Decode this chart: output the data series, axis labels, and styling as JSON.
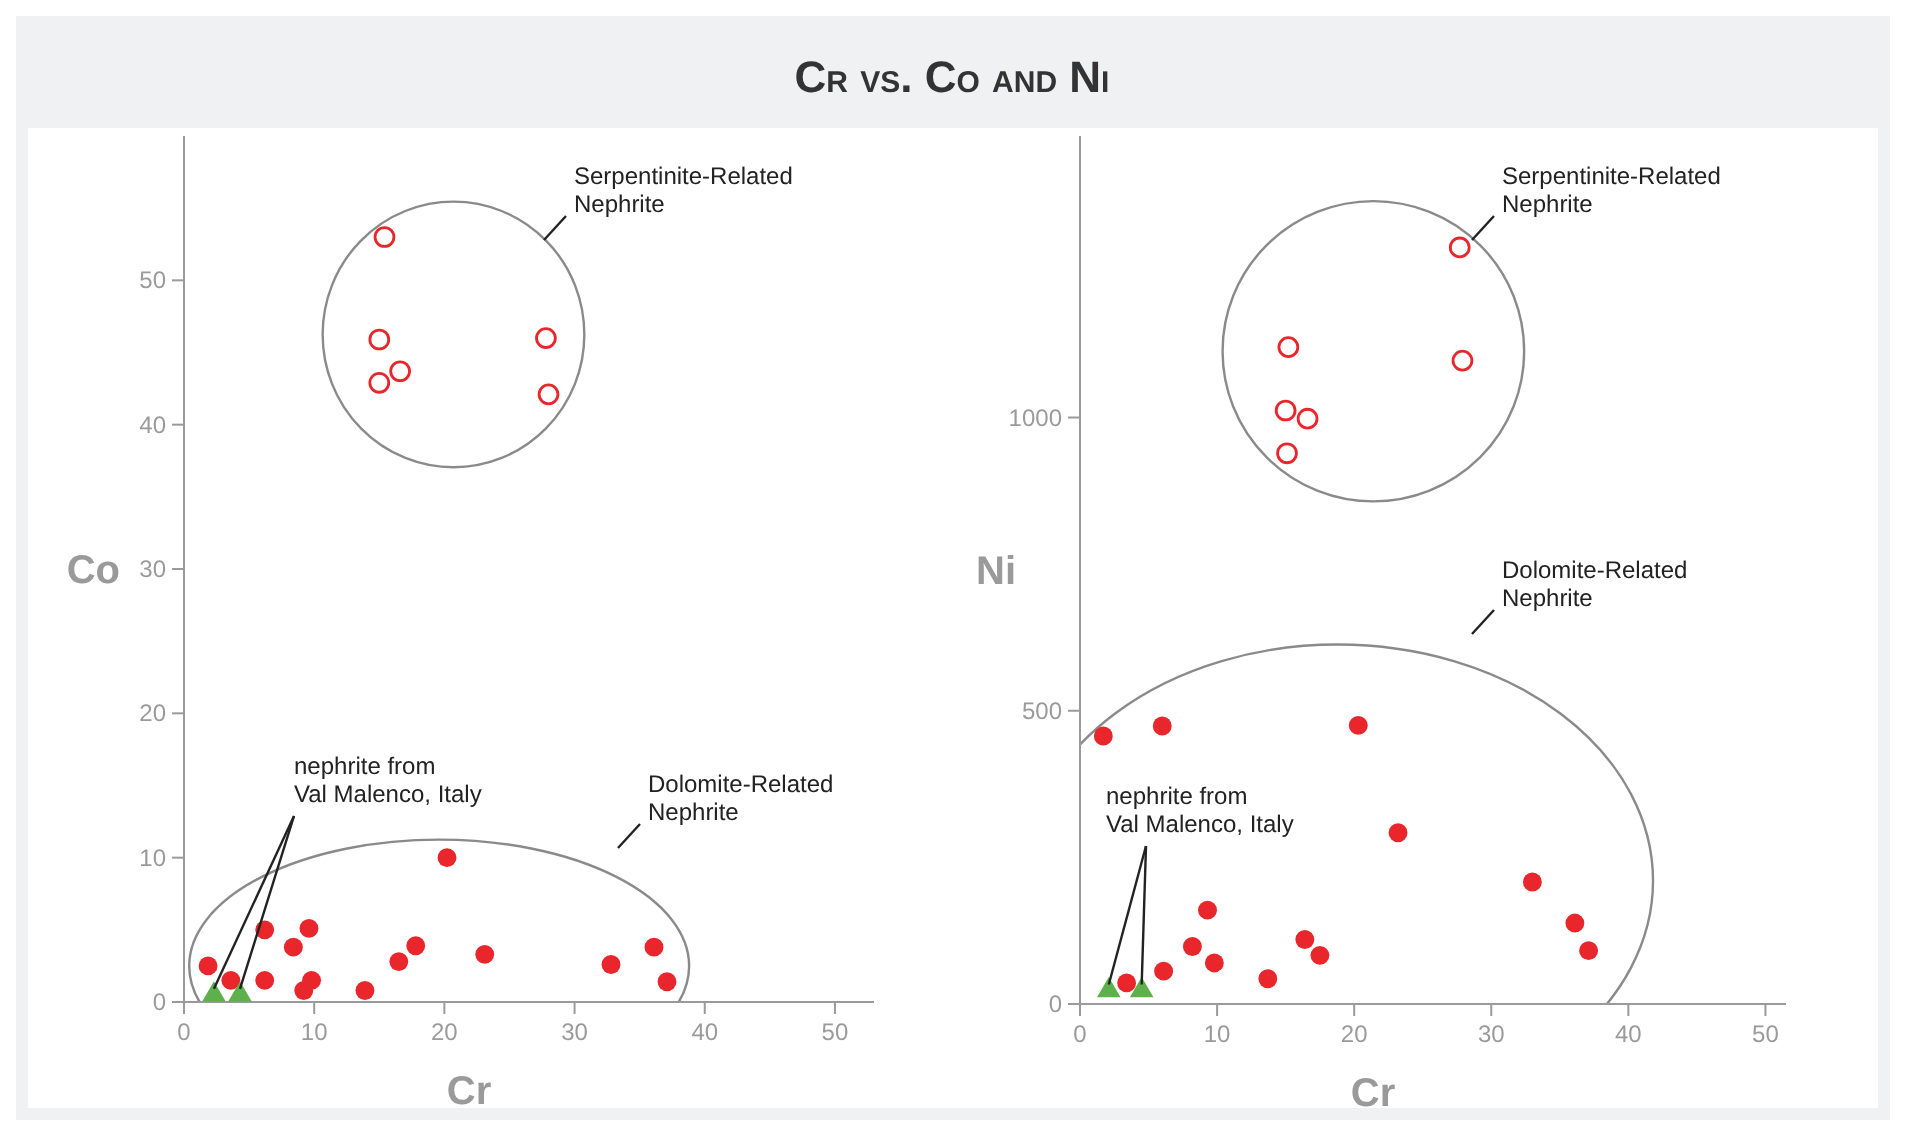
{
  "chart_data": [
    {
      "type": "scatter",
      "title": "Cr vs. Co and Ni",
      "xlabel": "Cr",
      "ylabel": "Co",
      "xlim": [
        0,
        53
      ],
      "ylim": [
        0,
        60
      ],
      "xticks": [
        0,
        10,
        20,
        30,
        40,
        50
      ],
      "yticks": [
        0,
        10,
        20,
        30,
        40,
        50
      ],
      "grid": false,
      "marker": "circle",
      "annotations": [
        "Serpentinite-Related\nNephrite",
        "Dolomite-Related\nNephrite",
        {
          "text": "nephrite from\nVal Malenco, Italy",
          "x": 2.3,
          "y": 0.5
        }
      ],
      "series": [
        {
          "color": "#e8262b",
          "x": [
            15.4,
            15.0,
            16.6,
            15.0,
            27.8,
            28.0
          ],
          "values": [
            53.0,
            45.9,
            43.7,
            42.9,
            46.0,
            42.1
          ]
        },
        {
          "color": "#e8262b",
          "x": [
            1.85,
            3.6,
            6.2,
            6.2,
            9.6,
            8.4,
            9.2,
            9.8,
            13.9,
            16.5,
            17.8,
            20.2,
            23.1,
            32.8,
            36.1,
            37.1
          ],
          "values": [
            2.5,
            1.5,
            5.0,
            1.5,
            5.1,
            3.8,
            0.8,
            1.5,
            0.8,
            2.8,
            3.9,
            10.0,
            3.3,
            2.6,
            3.8,
            1.4
          ]
        },
        {
          "color": "#5db04a",
          "marker": "triangle",
          "x": [
            2.3,
            4.3
          ],
          "values": [
            0.5,
            0.5
          ]
        }
      ]
    },
    {
      "type": "scatter",
      "xlabel": "Cr",
      "ylabel": "Ni",
      "xlim": [
        0,
        51.5
      ],
      "ylim": [
        0,
        1480
      ],
      "xticks": [
        0,
        10,
        20,
        30,
        40,
        50
      ],
      "yticks": [
        0,
        500,
        1000
      ],
      "grid": false,
      "marker": "circle",
      "annotations": [
        "Serpentinite-Related\nNephrite",
        "Dolomite-Related\nNephrite",
        {
          "text": "nephrite from\nVal Malenco, Italy",
          "x": 2.1,
          "y": 23
        }
      ],
      "series": [
        {
          "color": "#e8262b",
          "x": [
            27.7,
            15.2,
            27.9,
            15.0,
            16.6,
            15.1
          ],
          "values": [
            1290,
            1120,
            1097,
            1012,
            998,
            939
          ]
        },
        {
          "color": "#e8262b",
          "x": [
            1.7,
            6.0,
            20.3,
            23.2,
            33.0,
            36.1,
            37.1,
            9.3,
            8.2,
            9.8,
            6.1,
            3.4,
            13.7,
            16.4,
            17.5
          ],
          "values": [
            457,
            474,
            475,
            292,
            208,
            138,
            91,
            160,
            98,
            70,
            56,
            36,
            43,
            110,
            83
          ]
        },
        {
          "color": "#5db04a",
          "marker": "triangle",
          "x": [
            2.1,
            4.5
          ],
          "values": [
            23,
            23
          ]
        }
      ]
    }
  ]
}
